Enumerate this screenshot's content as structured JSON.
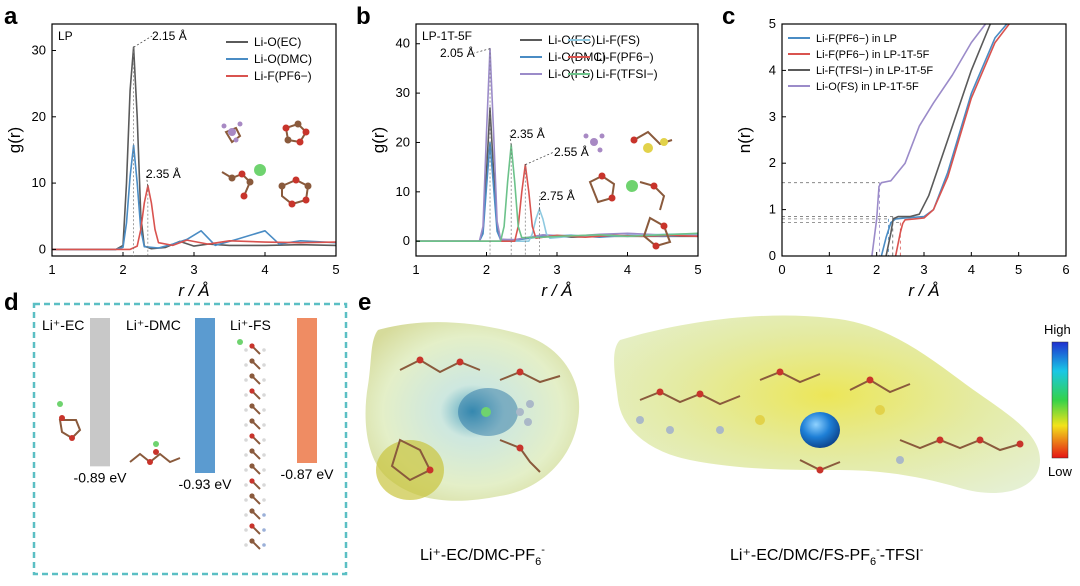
{
  "panels": {
    "a": "a",
    "b": "b",
    "c": "c",
    "d": "d",
    "e": "e"
  },
  "chart_data": [
    {
      "panel": "a",
      "type": "line",
      "tag": "LP",
      "xlabel": "r / Å",
      "ylabel": "g(r)",
      "xlim": [
        1,
        5
      ],
      "ylim": [
        -1,
        34
      ],
      "xticks": [
        1,
        2,
        3,
        4,
        5
      ],
      "yticks": [
        0,
        10,
        20,
        30
      ],
      "legend": "top-right",
      "series": [
        {
          "name": "Li-O(EC)",
          "color": "#5a5a5a",
          "x": [
            1,
            1.9,
            2.0,
            2.05,
            2.1,
            2.15,
            2.2,
            2.25,
            2.3,
            2.4,
            2.6,
            2.8,
            3.0,
            3.2,
            3.5,
            4.0,
            4.5,
            5.0
          ],
          "y": [
            0,
            0,
            0.6,
            10,
            24,
            30.5,
            20,
            5,
            0.5,
            0.1,
            0.3,
            1.2,
            0.5,
            0.8,
            0.6,
            0.6,
            0.7,
            0.6
          ]
        },
        {
          "name": "Li-O(DMC)",
          "color": "#4a8cc4",
          "x": [
            1,
            1.9,
            2.0,
            2.05,
            2.1,
            2.15,
            2.2,
            2.25,
            2.3,
            2.5,
            2.7,
            2.9,
            3.1,
            3.3,
            3.6,
            4.0,
            4.2,
            4.5,
            5.0
          ],
          "y": [
            0,
            0,
            0.3,
            4,
            11,
            15.7,
            10,
            3,
            0.4,
            0.2,
            0.8,
            1.5,
            2.8,
            0.6,
            1.5,
            2.8,
            0.8,
            1.3,
            1.0
          ]
        },
        {
          "name": "Li-F(PF6−)",
          "color": "#d9534f",
          "x": [
            1,
            2.1,
            2.2,
            2.25,
            2.3,
            2.35,
            2.4,
            2.45,
            2.5,
            2.7,
            2.9,
            3.2,
            3.5,
            4.0,
            4.5,
            5.0
          ],
          "y": [
            0,
            0,
            0.5,
            3,
            7,
            9.6,
            7,
            3,
            1,
            0.6,
            1.4,
            0.8,
            1.3,
            1.1,
            1.0,
            1.1
          ]
        }
      ],
      "annotations": [
        "2.15 Å",
        "2.35 Å"
      ]
    },
    {
      "panel": "b",
      "type": "line",
      "tag": "LP-1T-5F",
      "xlabel": "r / Å",
      "ylabel": "g(r)",
      "xlim": [
        1,
        5
      ],
      "ylim": [
        -3,
        44
      ],
      "xticks": [
        1,
        2,
        3,
        4,
        5
      ],
      "yticks": [
        0,
        10,
        20,
        30,
        40
      ],
      "legend": "top-right",
      "series": [
        {
          "name": "Li-O(EC)",
          "color": "#5a5a5a",
          "x": [
            1,
            1.9,
            1.95,
            2.0,
            2.05,
            2.1,
            2.15,
            2.2,
            2.4,
            2.8,
            3.2,
            3.6,
            4.0,
            4.5,
            5.0
          ],
          "y": [
            0,
            0,
            2,
            14,
            27,
            14,
            3,
            0.3,
            0.2,
            1.2,
            0.8,
            1.0,
            1.0,
            1.0,
            1.0
          ]
        },
        {
          "name": "Li-O(DMC)",
          "color": "#4a8cc4",
          "x": [
            1,
            1.9,
            1.95,
            2.0,
            2.05,
            2.1,
            2.15,
            2.2,
            2.4,
            2.8,
            3.2,
            3.6,
            4.0,
            4.5,
            5.0
          ],
          "y": [
            0,
            0,
            1.5,
            11,
            20,
            11,
            2,
            0.3,
            0.2,
            1.0,
            1.2,
            0.8,
            1.2,
            1.0,
            1.2
          ]
        },
        {
          "name": "Li-O(FS)",
          "color": "#9b8bc9",
          "x": [
            1,
            1.9,
            1.95,
            2.0,
            2.05,
            2.1,
            2.15,
            2.2,
            2.4,
            2.8,
            3.2,
            3.6,
            4.0,
            4.3,
            4.6,
            5.0
          ],
          "y": [
            0,
            0,
            3,
            22,
            39,
            22,
            4,
            0.4,
            0.3,
            1.3,
            1.0,
            1.4,
            1.6,
            1.4,
            1.2,
            1.3
          ]
        },
        {
          "name": "Li-F(FS)",
          "color": "#8ec9e0",
          "x": [
            1,
            2.6,
            2.65,
            2.7,
            2.75,
            2.8,
            2.85,
            2.9,
            3.2,
            3.6,
            4.0,
            4.5,
            5.0
          ],
          "y": [
            0,
            0,
            1.5,
            4.5,
            6.5,
            4.5,
            1.5,
            0.6,
            1.0,
            1.2,
            1.0,
            1.4,
            1.5
          ]
        },
        {
          "name": "Li-F(PF6−)",
          "color": "#d9534f",
          "x": [
            1,
            2.4,
            2.45,
            2.5,
            2.55,
            2.6,
            2.65,
            2.7,
            3.0,
            3.4,
            3.8,
            4.2,
            4.6,
            5.0
          ],
          "y": [
            0,
            0,
            3,
            10,
            15.5,
            10,
            3,
            0.6,
            1.2,
            0.8,
            1.2,
            1.0,
            1.2,
            1.0
          ]
        },
        {
          "name": "Li-F(TFSI−)",
          "color": "#6cc28a",
          "x": [
            1,
            2.2,
            2.25,
            2.3,
            2.35,
            2.4,
            2.45,
            2.5,
            2.8,
            3.2,
            3.6,
            4.0,
            4.5,
            5.0
          ],
          "y": [
            0,
            0,
            3,
            12,
            19.5,
            12,
            3,
            0.7,
            0.8,
            1.1,
            1.3,
            1.0,
            1.3,
            1.6
          ]
        }
      ],
      "annotations": [
        "2.05 Å",
        "2.35 Å",
        "2.55 Å",
        "2.75 Å"
      ]
    },
    {
      "panel": "c",
      "type": "line",
      "xlabel": "r / Å",
      "ylabel": "n(r)",
      "xlim": [
        0,
        6
      ],
      "ylim": [
        0,
        5
      ],
      "xticks": [
        0,
        1,
        2,
        3,
        4,
        5,
        6
      ],
      "yticks": [
        0,
        1,
        2,
        3,
        4,
        5
      ],
      "legend": "top-left",
      "series": [
        {
          "name": "Li-F(PF6−) in LP",
          "color": "#4a8cc4",
          "x": [
            2.1,
            2.2,
            2.3,
            2.4,
            2.6,
            3.0,
            3.2,
            3.5,
            4.0,
            4.5,
            4.75
          ],
          "y": [
            0,
            0.4,
            0.72,
            0.8,
            0.82,
            0.85,
            1.0,
            1.8,
            3.5,
            4.7,
            5.0
          ]
        },
        {
          "name": "Li-F(PF6−) in LP-1T-5F",
          "color": "#d9534f",
          "x": [
            2.4,
            2.5,
            2.55,
            2.6,
            2.8,
            3.0,
            3.2,
            3.5,
            4.0,
            4.5,
            4.8
          ],
          "y": [
            0,
            0.5,
            0.7,
            0.78,
            0.8,
            0.82,
            1.0,
            1.7,
            3.4,
            4.6,
            5.0
          ]
        },
        {
          "name": "Li-F(TFSI−) in LP-1T-5F",
          "color": "#5a5a5a",
          "x": [
            2.2,
            2.3,
            2.35,
            2.45,
            2.7,
            2.9,
            3.1,
            3.5,
            4.0,
            4.4
          ],
          "y": [
            0,
            0.5,
            0.8,
            0.85,
            0.85,
            0.9,
            1.3,
            2.5,
            4.0,
            5.0
          ]
        },
        {
          "name": "Li-O(FS) in LP-1T-5F",
          "color": "#9b8bc9",
          "x": [
            1.9,
            2.0,
            2.05,
            2.1,
            2.3,
            2.6,
            2.9,
            3.2,
            3.6,
            4.0,
            4.3
          ],
          "y": [
            0,
            0.8,
            1.5,
            1.58,
            1.62,
            2.0,
            2.8,
            3.3,
            3.9,
            4.6,
            5.0
          ]
        }
      ],
      "guides": [
        1.58,
        0.85,
        0.8,
        0.72
      ]
    }
  ],
  "panel_d": {
    "labels": [
      "Li⁺-EC",
      "Li⁺-DMC",
      "Li⁺-FS"
    ],
    "energies": [
      -0.89,
      -0.93,
      -0.87
    ],
    "energy_labels": [
      "-0.89 eV",
      "-0.93 eV",
      "-0.87 eV"
    ],
    "colors": [
      "#c8c8c8",
      "#5b9bd0",
      "#ef8c63"
    ],
    "border_color": "#5bbfc4"
  },
  "panel_e": {
    "label_left_main": "Li⁺-EC/DMC-PF",
    "label_left_sub": "6",
    "label_left_sup": "-",
    "label_right_main": "Li⁺-EC/DMC/FS-PF",
    "label_right_sub": "6",
    "label_right_sup": "-",
    "label_right_tail": "-TFSI",
    "label_right_tail_sup": "-",
    "scale_high": "High",
    "scale_low": "Low"
  }
}
